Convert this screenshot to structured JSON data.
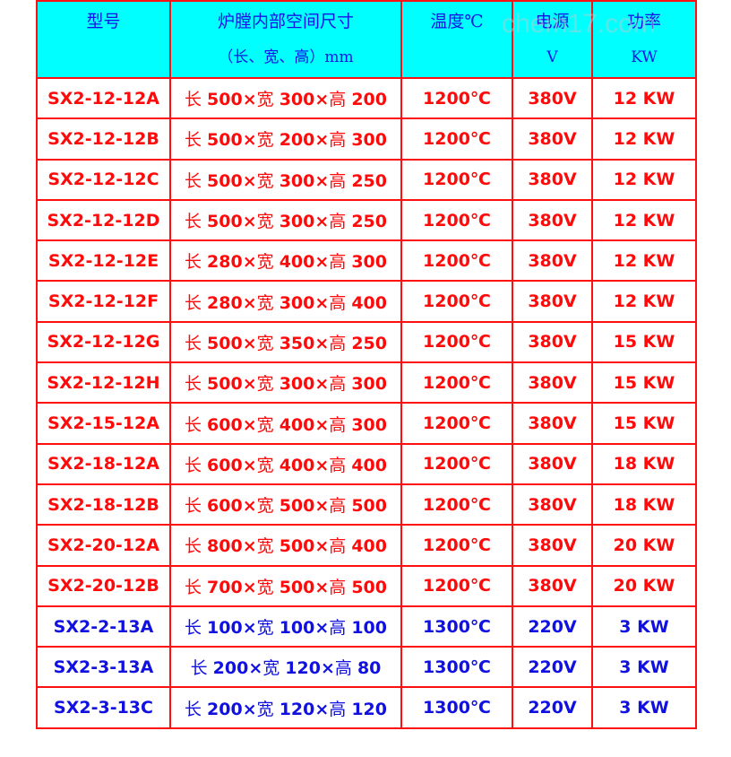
{
  "header": {
    "model": "型号",
    "size": "炉膛内部空间尺寸",
    "size_sub": "（长、宽、高）mm",
    "temp": "温度℃",
    "voltage": "电源",
    "voltage_sub": "V",
    "power": "功率",
    "power_sub": "KW"
  },
  "watermark": "chem17.com",
  "colors": {
    "header_bg": "#00ffff",
    "border": "#ff1010",
    "red_text": "#ff0a0a",
    "blue_text": "#1010e0"
  },
  "rows": [
    {
      "model": "SX2-12-12A",
      "l": "500",
      "w": "300",
      "h": "200",
      "temp": "1200℃",
      "v": "380V",
      "p": "12 KW",
      "color": "red"
    },
    {
      "model": "SX2-12-12B",
      "l": "500",
      "w": "200",
      "h": "300",
      "temp": "1200℃",
      "v": "380V",
      "p": "12 KW",
      "color": "red"
    },
    {
      "model": "SX2-12-12C",
      "l": "500",
      "w": "300",
      "h": "250",
      "temp": "1200℃",
      "v": "380V",
      "p": "12 KW",
      "color": "red"
    },
    {
      "model": "SX2-12-12D",
      "l": "500",
      "w": "300",
      "h": "250",
      "temp": "1200℃",
      "v": "380V",
      "p": "12 KW",
      "color": "red"
    },
    {
      "model": "SX2-12-12E",
      "l": "280",
      "w": "400",
      "h": "300",
      "temp": "1200℃",
      "v": "380V",
      "p": "12 KW",
      "color": "red"
    },
    {
      "model": "SX2-12-12F",
      "l": "280",
      "w": "300",
      "h": "400",
      "temp": "1200℃",
      "v": "380V",
      "p": "12 KW",
      "color": "red"
    },
    {
      "model": "SX2-12-12G",
      "l": "500",
      "w": "350",
      "h": "250",
      "temp": "1200℃",
      "v": "380V",
      "p": "15 KW",
      "color": "red"
    },
    {
      "model": "SX2-12-12H",
      "l": "500",
      "w": "300",
      "h": "300",
      "temp": "1200℃",
      "v": "380V",
      "p": "15 KW",
      "color": "red"
    },
    {
      "model": "SX2-15-12A",
      "l": "600",
      "w": "400",
      "h": "300",
      "temp": "1200℃",
      "v": "380V",
      "p": "15 KW",
      "color": "red"
    },
    {
      "model": "SX2-18-12A",
      "l": "600",
      "w": "400",
      "h": "400",
      "temp": "1200℃",
      "v": "380V",
      "p": "18 KW",
      "color": "red"
    },
    {
      "model": "SX2-18-12B",
      "l": "600",
      "w": "500",
      "h": "500",
      "temp": "1200℃",
      "v": "380V",
      "p": "18 KW",
      "color": "red"
    },
    {
      "model": "SX2-20-12A",
      "l": "800",
      "w": "500",
      "h": "400",
      "temp": "1200℃",
      "v": "380V",
      "p": "20 KW",
      "color": "red"
    },
    {
      "model": "SX2-20-12B",
      "l": "700",
      "w": "500",
      "h": "500",
      "temp": "1200℃",
      "v": "380V",
      "p": "20 KW",
      "color": "red"
    },
    {
      "model": "SX2-2-13A",
      "l": "100",
      "w": "100",
      "h": "100",
      "temp": "1300℃",
      "v": "220V",
      "p": "3 KW",
      "color": "blue"
    },
    {
      "model": "SX2-3-13A",
      "l": "200",
      "w": "120",
      "h": "80",
      "temp": "1300℃",
      "v": "220V",
      "p": "3 KW",
      "color": "blue"
    },
    {
      "model": "SX2-3-13C",
      "l": "200",
      "w": "120",
      "h": "120",
      "temp": "1300℃",
      "v": "220V",
      "p": "3 KW",
      "color": "blue"
    }
  ],
  "labels": {
    "len": "长 ",
    "wid": "宽 ",
    "hei": "高 ",
    "times": "×"
  }
}
